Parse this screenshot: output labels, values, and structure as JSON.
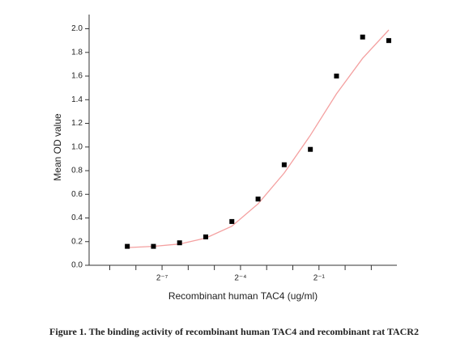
{
  "chart_data": {
    "type": "scatter",
    "ylabel": "Mean OD value",
    "xlabel": "Recombinant human TAC4 (ug/ml)",
    "caption": "Figure 1. The binding activity of recombinant human TAC4 and recombinant rat TACR2",
    "x": [
      0.00311,
      0.00622,
      0.01243,
      0.02487,
      0.0497,
      0.0995,
      0.199,
      0.398,
      0.796,
      1.59,
      3.18
    ],
    "values": [
      0.16,
      0.16,
      0.19,
      0.24,
      0.37,
      0.56,
      0.85,
      0.98,
      1.6,
      1.93,
      1.9
    ],
    "color": "#000000",
    "fit": {
      "color": "#f4a0a0",
      "x": [
        0.00311,
        0.00622,
        0.01243,
        0.02487,
        0.0497,
        0.0995,
        0.199,
        0.398,
        0.796,
        1.59,
        3.18
      ],
      "values": [
        0.15,
        0.16,
        0.18,
        0.23,
        0.33,
        0.52,
        0.78,
        1.1,
        1.45,
        1.75,
        1.99
      ]
    },
    "xscale": "log2",
    "xlim": [
      0.00113,
      3.945
    ],
    "xticks": [
      {
        "value": 0.0078125,
        "label": "2⁻⁷"
      },
      {
        "value": 0.0625,
        "label": "2⁻⁴"
      },
      {
        "value": 0.5,
        "label": "2⁻¹"
      }
    ],
    "xminorticks": [
      0.001953125,
      0.00390625,
      0.015625,
      0.03125,
      0.125,
      0.25,
      1,
      2
    ],
    "ylim": [
      0,
      2.12
    ],
    "yticks": [
      {
        "value": 0,
        "label": "0.0"
      },
      0.2,
      0.4,
      0.6,
      0.8,
      {
        "value": 1,
        "label": "1.0"
      },
      1.2,
      1.4,
      1.6,
      1.8,
      {
        "value": 2,
        "label": "2.0"
      }
    ]
  }
}
